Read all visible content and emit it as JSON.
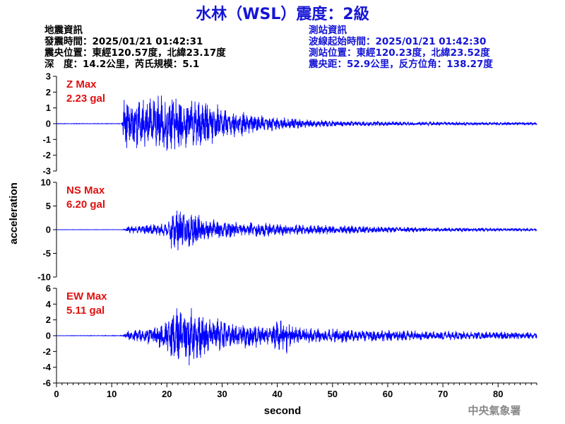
{
  "title": "水林（WSL）震度：2級",
  "quake_info": {
    "heading": "地震資訊",
    "origin_time": "發震時間：2025/01/21 01:42:31",
    "epicenter": "震央位置：東經120.57度，北緯23.17度",
    "depth_magnitude": "深　度：14.2公里，芮氏規模：5.1"
  },
  "station_info": {
    "heading": "測站資訊",
    "wave_start": "波線起始時間：2025/01/21 01:42:30",
    "station_location": "測站位置：東經120.23度，北緯23.52度",
    "distance_azimuth": "震央距：52.9公里，反方位角：138.27度"
  },
  "footer": "中央氣象署",
  "chart_data": {
    "type": "line",
    "xlabel": "second",
    "ylabel": "acceleration",
    "xlim": [
      0,
      87
    ],
    "x_ticks": [
      0,
      10,
      20,
      30,
      40,
      50,
      60,
      70,
      80
    ],
    "line_color": "#0000ff",
    "max_label_color": "#e01010",
    "series": [
      {
        "name": "Z",
        "max_label": "Z Max",
        "max_value": "2.23 gal",
        "ylim": [
          -3,
          3
        ],
        "y_ticks": [
          -3,
          -2,
          -1,
          0,
          1,
          2,
          3
        ],
        "envelope": [
          [
            0,
            0.02
          ],
          [
            11.8,
            0.02
          ],
          [
            12.2,
            1.9
          ],
          [
            14,
            2.0
          ],
          [
            20,
            2.2
          ],
          [
            25,
            2.0
          ],
          [
            30,
            1.3
          ],
          [
            35,
            0.8
          ],
          [
            40,
            0.5
          ],
          [
            50,
            0.25
          ],
          [
            60,
            0.18
          ],
          [
            70,
            0.15
          ],
          [
            87,
            0.12
          ]
        ],
        "seed": 11
      },
      {
        "name": "NS",
        "max_label": "NS Max",
        "max_value": "6.20 gal",
        "ylim": [
          -10,
          10
        ],
        "y_ticks": [
          -10,
          -5,
          0,
          5,
          10
        ],
        "envelope": [
          [
            0,
            0.03
          ],
          [
            12,
            0.05
          ],
          [
            13,
            0.8
          ],
          [
            18,
            1.6
          ],
          [
            20,
            2.5
          ],
          [
            21,
            5.5
          ],
          [
            24,
            5.0
          ],
          [
            28,
            2.8
          ],
          [
            32,
            2.2
          ],
          [
            40,
            1.8
          ],
          [
            50,
            1.2
          ],
          [
            60,
            0.8
          ],
          [
            70,
            0.6
          ],
          [
            87,
            0.4
          ]
        ],
        "seed": 23
      },
      {
        "name": "EW",
        "max_label": "EW Max",
        "max_value": "5.11 gal",
        "ylim": [
          -6,
          6
        ],
        "y_ticks": [
          -6,
          -4,
          -2,
          0,
          2,
          4,
          6
        ],
        "envelope": [
          [
            0,
            0.02
          ],
          [
            12,
            0.05
          ],
          [
            13,
            0.8
          ],
          [
            18,
            1.5
          ],
          [
            20,
            2.5
          ],
          [
            21,
            4.6
          ],
          [
            24,
            4.2
          ],
          [
            28,
            3.0
          ],
          [
            32,
            2.2
          ],
          [
            38,
            1.7
          ],
          [
            41.5,
            2.9
          ],
          [
            43,
            1.3
          ],
          [
            50,
            1.1
          ],
          [
            60,
            0.9
          ],
          [
            70,
            0.7
          ],
          [
            80,
            0.7
          ],
          [
            87,
            0.5
          ]
        ],
        "seed": 37
      }
    ]
  }
}
